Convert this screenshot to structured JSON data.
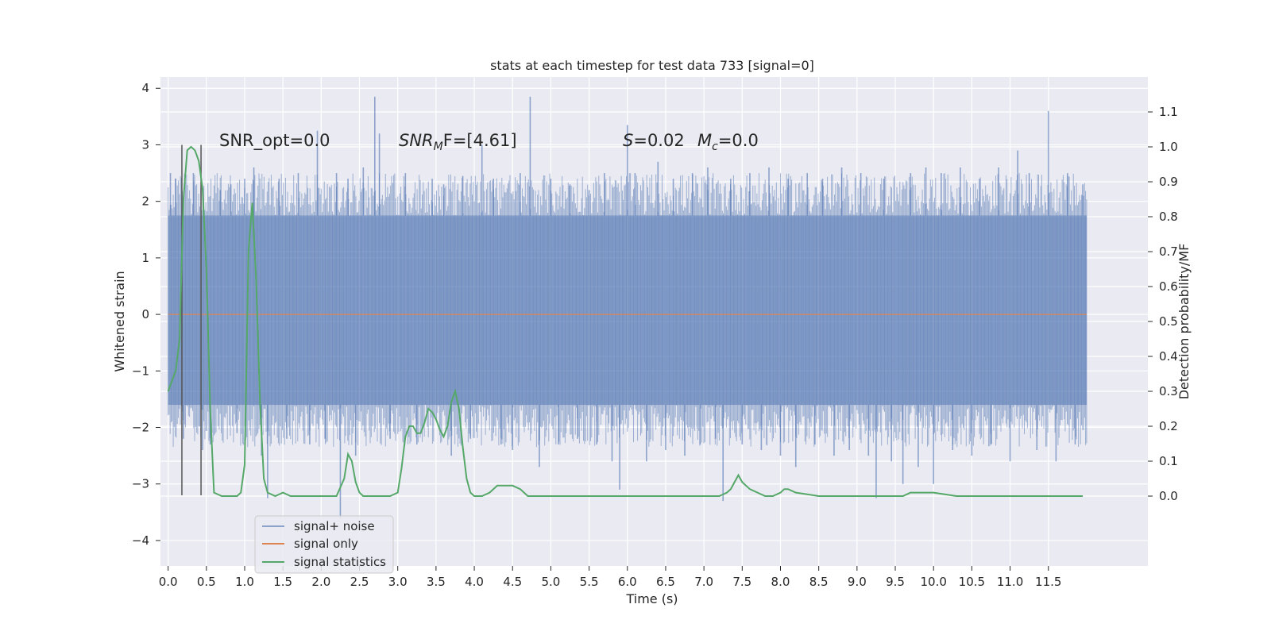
{
  "chart_data": {
    "type": "line",
    "title": "stats at each timestep for test data 733 [signal=0]",
    "xlabel": "Time (s)",
    "ylabel_left": "Whitened strain",
    "ylabel_right": "Detection probability/MF",
    "xlim": [
      -0.1,
      12.8
    ],
    "ylim_left": [
      -4.45,
      4.2
    ],
    "ylim_right": [
      -0.2,
      1.2
    ],
    "xticks": [
      "0.0",
      "0.5",
      "1.0",
      "1.5",
      "2.0",
      "2.5",
      "3.0",
      "3.5",
      "4.0",
      "4.5",
      "5.0",
      "5.5",
      "6.0",
      "6.5",
      "7.0",
      "7.5",
      "8.0",
      "8.5",
      "9.0",
      "9.5",
      "10.0",
      "10.5",
      "11.0",
      "11.5"
    ],
    "yticks_left": [
      "−4",
      "−3",
      "−2",
      "−1",
      "0",
      "1",
      "2",
      "3",
      "4"
    ],
    "yticks_right": [
      "0.0",
      "0.1",
      "0.2",
      "0.3",
      "0.4",
      "0.5",
      "0.6",
      "0.7",
      "0.8",
      "0.9",
      "1.0",
      "1.1"
    ],
    "annotations": {
      "snr_opt": "SNR_opt=0.0",
      "snr_mf_sym": "SNR",
      "snr_mf_sub": "M",
      "snr_mf_rest": "F=[4.61]",
      "s_sym": "S",
      "s_rest": "=0.02",
      "mc_sym": "M",
      "mc_sub": "c",
      "mc_rest": "=0.0"
    },
    "vlines_x": [
      0.18,
      0.43
    ],
    "vlines_y": [
      -3.2,
      3.0
    ],
    "grid": true,
    "legend_position": "lower-left",
    "series": [
      {
        "name": "signal+ noise",
        "color": "#4c72b0",
        "opacity": 0.5,
        "axis": "left",
        "x_range": [
          0.0,
          12.0
        ],
        "band_y": [
          -1.6,
          1.75
        ],
        "spikes": [
          [
            0.03,
            2.5
          ],
          [
            0.1,
            2.4
          ],
          [
            0.2,
            -2.2
          ],
          [
            0.33,
            2.5
          ],
          [
            0.45,
            -2.4
          ],
          [
            0.55,
            -2.3
          ],
          [
            0.68,
            2.2
          ],
          [
            0.82,
            2.3
          ],
          [
            0.9,
            -2.1
          ],
          [
            1.0,
            2.4
          ],
          [
            1.12,
            2.6
          ],
          [
            1.22,
            -2.5
          ],
          [
            1.3,
            -3.25
          ],
          [
            1.45,
            2.4
          ],
          [
            1.55,
            -2.2
          ],
          [
            1.7,
            2.5
          ],
          [
            1.85,
            -2.3
          ],
          [
            1.95,
            3.25
          ],
          [
            2.05,
            -2.2
          ],
          [
            2.2,
            2.5
          ],
          [
            2.25,
            -3.6
          ],
          [
            2.35,
            2.4
          ],
          [
            2.45,
            -2.5
          ],
          [
            2.55,
            2.6
          ],
          [
            2.7,
            3.85
          ],
          [
            2.76,
            3.2
          ],
          [
            2.9,
            -2.2
          ],
          [
            3.1,
            2.5
          ],
          [
            3.25,
            -2.3
          ],
          [
            3.45,
            2.4
          ],
          [
            3.6,
            2.3
          ],
          [
            3.7,
            -2.5
          ],
          [
            3.85,
            2.45
          ],
          [
            3.95,
            -2.2
          ],
          [
            4.1,
            3.0
          ],
          [
            4.25,
            2.4
          ],
          [
            4.35,
            -2.3
          ],
          [
            4.5,
            -2.4
          ],
          [
            4.6,
            2.5
          ],
          [
            4.73,
            3.85
          ],
          [
            4.85,
            -2.7
          ],
          [
            5.0,
            2.4
          ],
          [
            5.1,
            -2.3
          ],
          [
            5.25,
            2.3
          ],
          [
            5.35,
            -2.2
          ],
          [
            5.5,
            2.2
          ],
          [
            5.6,
            -2.3
          ],
          [
            5.7,
            2.5
          ],
          [
            5.8,
            -2.6
          ],
          [
            5.9,
            -3.1
          ],
          [
            6.0,
            3.35
          ],
          [
            6.1,
            2.5
          ],
          [
            6.25,
            -2.6
          ],
          [
            6.4,
            2.7
          ],
          [
            6.5,
            -2.4
          ],
          [
            6.6,
            2.4
          ],
          [
            6.75,
            -2.5
          ],
          [
            6.85,
            2.5
          ],
          [
            6.95,
            -2.3
          ],
          [
            7.05,
            2.6
          ],
          [
            7.15,
            -2.2
          ],
          [
            7.25,
            -3.3
          ],
          [
            7.35,
            2.4
          ],
          [
            7.5,
            -2.3
          ],
          [
            7.6,
            2.5
          ],
          [
            7.75,
            -2.4
          ],
          [
            7.85,
            2.6
          ],
          [
            8.0,
            -2.5
          ],
          [
            8.1,
            2.4
          ],
          [
            8.2,
            -2.7
          ],
          [
            8.35,
            2.5
          ],
          [
            8.45,
            -2.3
          ],
          [
            8.55,
            2.4
          ],
          [
            8.7,
            -2.5
          ],
          [
            8.8,
            2.6
          ],
          [
            8.9,
            -2.4
          ],
          [
            9.05,
            2.5
          ],
          [
            9.15,
            -2.5
          ],
          [
            9.25,
            -3.25
          ],
          [
            9.35,
            2.4
          ],
          [
            9.45,
            -2.6
          ],
          [
            9.6,
            -3.0
          ],
          [
            9.7,
            2.5
          ],
          [
            9.8,
            -2.7
          ],
          [
            9.9,
            2.6
          ],
          [
            10.0,
            -3.0
          ],
          [
            10.1,
            2.5
          ],
          [
            10.25,
            -2.4
          ],
          [
            10.35,
            2.6
          ],
          [
            10.5,
            -2.5
          ],
          [
            10.6,
            2.4
          ],
          [
            10.75,
            -2.3
          ],
          [
            10.85,
            2.6
          ],
          [
            11.0,
            -2.6
          ],
          [
            11.1,
            2.9
          ],
          [
            11.25,
            2.5
          ],
          [
            11.35,
            -2.4
          ],
          [
            11.5,
            3.6
          ],
          [
            11.6,
            -2.6
          ],
          [
            11.75,
            2.5
          ],
          [
            11.85,
            -2.3
          ],
          [
            11.95,
            2.3
          ]
        ]
      },
      {
        "name": "signal only",
        "color": "#dd8452",
        "axis": "left",
        "x": [
          0.0,
          12.0
        ],
        "y": [
          0.0,
          0.0
        ]
      },
      {
        "name": "signal statistics",
        "color": "#55a868",
        "axis": "right",
        "x": [
          0.0,
          0.1,
          0.15,
          0.2,
          0.25,
          0.3,
          0.35,
          0.4,
          0.45,
          0.5,
          0.55,
          0.6,
          0.7,
          0.8,
          0.9,
          0.95,
          1.0,
          1.05,
          1.1,
          1.15,
          1.2,
          1.25,
          1.3,
          1.4,
          1.5,
          1.6,
          1.8,
          2.0,
          2.2,
          2.3,
          2.35,
          2.4,
          2.45,
          2.5,
          2.55,
          2.6,
          2.7,
          2.8,
          2.9,
          3.0,
          3.05,
          3.1,
          3.15,
          3.2,
          3.25,
          3.3,
          3.35,
          3.4,
          3.45,
          3.5,
          3.55,
          3.6,
          3.65,
          3.7,
          3.75,
          3.8,
          3.85,
          3.9,
          3.95,
          4.0,
          4.05,
          4.1,
          4.2,
          4.3,
          4.4,
          4.5,
          4.6,
          4.65,
          4.7,
          4.8,
          4.9,
          5.0,
          5.5,
          6.0,
          6.5,
          6.7,
          6.8,
          7.0,
          7.2,
          7.3,
          7.35,
          7.4,
          7.45,
          7.5,
          7.6,
          7.7,
          7.8,
          7.9,
          8.0,
          8.05,
          8.1,
          8.2,
          8.5,
          8.8,
          9.0,
          9.5,
          9.6,
          9.7,
          9.8,
          9.9,
          10.0,
          10.3,
          11.0,
          11.5,
          11.95
        ],
        "y": [
          0.3,
          0.36,
          0.45,
          0.85,
          0.99,
          1.0,
          0.99,
          0.96,
          0.88,
          0.65,
          0.25,
          0.01,
          0.0,
          0.0,
          0.0,
          0.01,
          0.09,
          0.7,
          0.84,
          0.62,
          0.27,
          0.05,
          0.01,
          0.0,
          0.01,
          0.0,
          0.0,
          0.0,
          0.0,
          0.05,
          0.12,
          0.1,
          0.04,
          0.01,
          0.0,
          0.0,
          0.0,
          0.0,
          0.0,
          0.01,
          0.08,
          0.17,
          0.2,
          0.2,
          0.18,
          0.18,
          0.21,
          0.25,
          0.24,
          0.22,
          0.19,
          0.17,
          0.2,
          0.27,
          0.3,
          0.25,
          0.14,
          0.05,
          0.01,
          0.0,
          0.0,
          0.0,
          0.01,
          0.03,
          0.03,
          0.03,
          0.02,
          0.01,
          0.0,
          0.0,
          0.0,
          0.0,
          0.0,
          0.0,
          0.0,
          0.0,
          0.0,
          0.0,
          0.0,
          0.01,
          0.02,
          0.04,
          0.06,
          0.04,
          0.02,
          0.01,
          0.0,
          0.0,
          0.01,
          0.02,
          0.02,
          0.01,
          0.0,
          0.0,
          0.0,
          0.0,
          0.0,
          0.01,
          0.01,
          0.01,
          0.01,
          0.0,
          0.0,
          0.0,
          0.0
        ]
      }
    ]
  }
}
